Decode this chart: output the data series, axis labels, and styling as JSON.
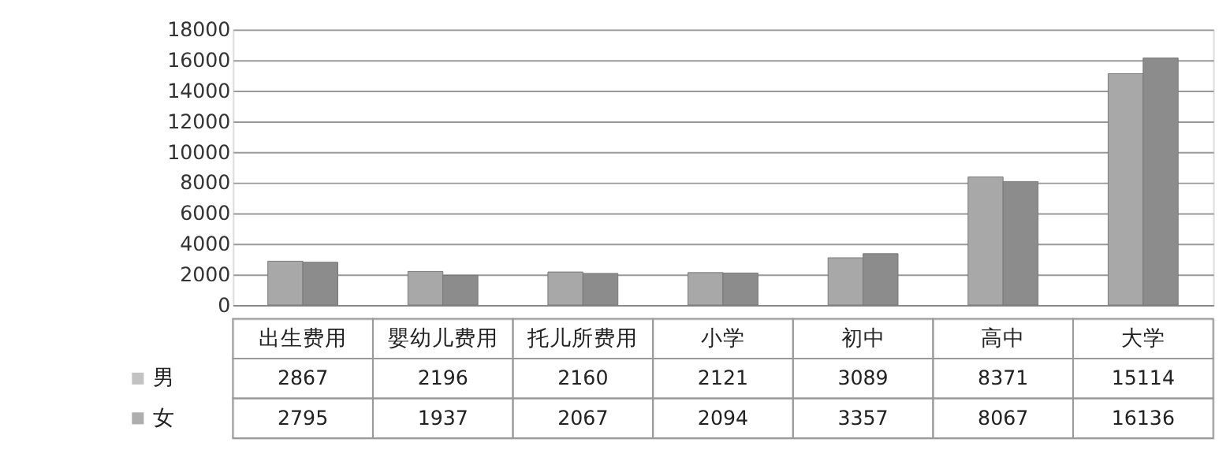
{
  "chart_data": {
    "type": "bar",
    "categories": [
      "出生费用",
      "嬰幼儿费用",
      "托儿所费用",
      "小学",
      "初中",
      "高中",
      "大学"
    ],
    "series": [
      {
        "name": "男",
        "color": "#a8a8a8",
        "values": [
          2867,
          2196,
          2160,
          2121,
          3089,
          8371,
          15114
        ]
      },
      {
        "name": "女",
        "color": "#8c8c8c",
        "values": [
          2795,
          1937,
          2067,
          2094,
          3357,
          8067,
          16136
        ]
      }
    ],
    "ylim": [
      0,
      18000
    ],
    "yticks": [
      0,
      2000,
      4000,
      6000,
      8000,
      10000,
      12000,
      14000,
      16000,
      18000
    ],
    "grid": "y",
    "data_labels": true,
    "legend": "bottom left"
  }
}
